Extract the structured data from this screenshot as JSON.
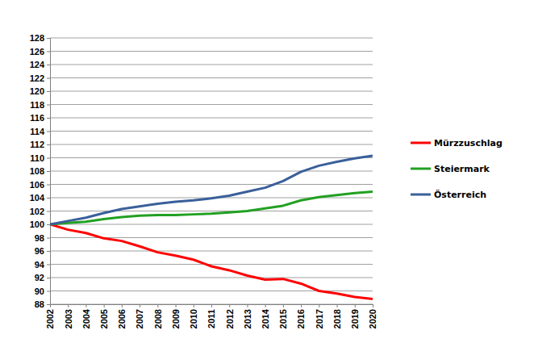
{
  "chart_data": {
    "type": "line",
    "categories": [
      "2002",
      "2003",
      "2004",
      "2005",
      "2006",
      "2007",
      "2008",
      "2009",
      "2010",
      "2011",
      "2012",
      "2013",
      "2014",
      "2015",
      "2016",
      "2017",
      "2018",
      "2019",
      "2020"
    ],
    "series": [
      {
        "name": "Mürzzuschlag",
        "color": "#ff0000",
        "values": [
          100,
          99.2,
          98.7,
          97.9,
          97.5,
          96.7,
          95.8,
          95.3,
          94.7,
          93.7,
          93.1,
          92.3,
          91.7,
          91.8,
          91.1,
          90.0,
          89.6,
          89.1,
          88.8
        ]
      },
      {
        "name": "Steiermark",
        "color": "#22a022",
        "values": [
          100,
          100.2,
          100.4,
          100.8,
          101.1,
          101.3,
          101.4,
          101.4,
          101.5,
          101.6,
          101.8,
          102.0,
          102.4,
          102.8,
          103.6,
          104.1,
          104.4,
          104.7,
          104.9
        ]
      },
      {
        "name": "Österreich",
        "color": "#3a5f9a",
        "values": [
          100,
          100.5,
          101.0,
          101.7,
          102.3,
          102.7,
          103.1,
          103.4,
          103.6,
          103.9,
          104.3,
          104.9,
          105.5,
          106.5,
          107.9,
          108.8,
          109.4,
          109.9,
          110.3
        ]
      }
    ],
    "ylim": [
      88,
      128
    ],
    "yticks": [
      88,
      90,
      92,
      94,
      96,
      98,
      100,
      102,
      104,
      106,
      108,
      110,
      112,
      114,
      116,
      118,
      120,
      122,
      124,
      126,
      128
    ],
    "grid": true,
    "legend": "right"
  }
}
